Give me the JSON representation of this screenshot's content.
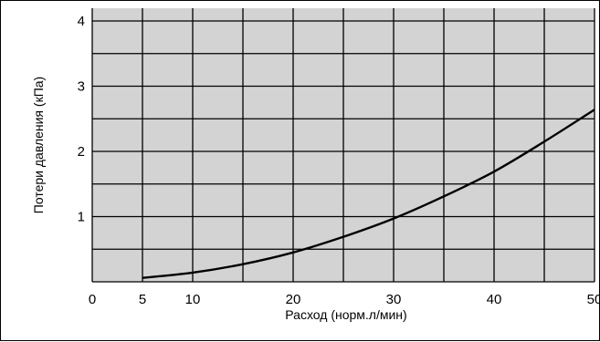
{
  "chart_data": {
    "type": "line",
    "xlabel": "Расход (норм.л/мин)",
    "ylabel": "Потери давления (кПа)",
    "xlim": [
      0,
      50
    ],
    "ylim": [
      0,
      4
    ],
    "x_ticks": [
      0,
      5,
      10,
      20,
      30,
      40,
      50
    ],
    "x_tick_labels": [
      "0",
      "5",
      "10",
      "20",
      "30",
      "40",
      "50"
    ],
    "y_ticks": [
      1,
      2,
      3,
      4
    ],
    "y_tick_labels": [
      "1",
      "2",
      "3",
      "4"
    ],
    "grid": true,
    "grid_x": [
      5,
      10,
      15,
      20,
      25,
      30,
      35,
      40,
      45,
      50
    ],
    "grid_y": [
      0.5,
      1,
      1.5,
      2,
      2.5,
      3,
      3.5,
      4
    ],
    "background_color": "#d3d3d3",
    "line_color": "#000000",
    "series": [
      {
        "x": [
          5,
          10,
          15,
          20,
          25,
          30,
          35,
          40,
          45,
          50
        ],
        "y": [
          0.06,
          0.14,
          0.27,
          0.45,
          0.69,
          0.97,
          1.31,
          1.69,
          2.15,
          2.64
        ]
      }
    ]
  }
}
